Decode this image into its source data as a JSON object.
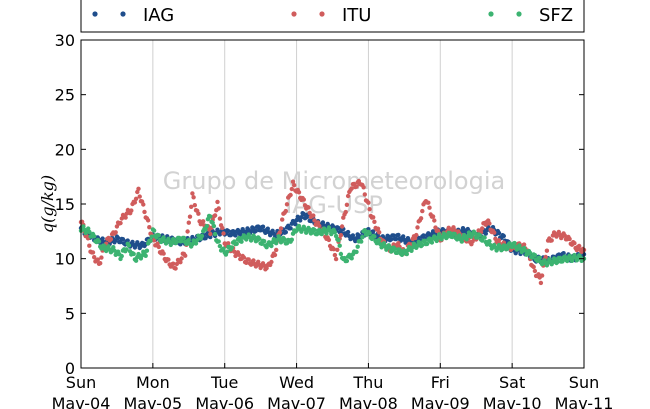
{
  "chart_data": {
    "type": "scatter",
    "ylabel": "q(g/kg)",
    "ylim": [
      0,
      30
    ],
    "yticks": [
      0,
      5,
      10,
      15,
      20,
      25,
      30
    ],
    "xlim": [
      0,
      7
    ],
    "x_units": "days from Sun May-04",
    "xtick_labels": [
      {
        "day": "Sun",
        "date": "Mav-04"
      },
      {
        "day": "Mon",
        "date": "Mav-05"
      },
      {
        "day": "Tue",
        "date": "Mav-06"
      },
      {
        "day": "Wed",
        "date": "Mav-07"
      },
      {
        "day": "Thu",
        "date": "Mav-08"
      },
      {
        "day": "Fri",
        "date": "Mav-09"
      },
      {
        "day": "Sat",
        "date": "Mav-10"
      },
      {
        "day": "Sun",
        "date": "Mav-11"
      }
    ],
    "grid": "vertical",
    "legend_position": "top",
    "watermark": [
      "Grupo de Micrometeorologia",
      "IAG-USP"
    ],
    "series": [
      {
        "name": "IAG",
        "color": "#1f4e8c",
        "x": [
          0,
          0.1,
          0.2,
          0.35,
          0.5,
          0.7,
          0.85,
          1.0,
          1.2,
          1.4,
          1.6,
          1.8,
          1.95,
          2.1,
          2.3,
          2.5,
          2.7,
          2.85,
          3.0,
          3.1,
          3.3,
          3.5,
          3.65,
          3.8,
          4.0,
          4.2,
          4.4,
          4.6,
          4.8,
          5.0,
          5.2,
          5.35,
          5.5,
          5.7,
          5.9,
          6.0,
          6.2,
          6.3,
          6.5,
          6.7,
          6.85,
          7.0
        ],
        "values": [
          12.8,
          12.2,
          11.8,
          11.5,
          11.8,
          11.3,
          11.2,
          12.0,
          11.8,
          11.5,
          11.8,
          12.2,
          12.5,
          12.3,
          12.5,
          12.8,
          12.2,
          12.6,
          13.5,
          14.0,
          13.2,
          12.8,
          12.5,
          11.8,
          12.5,
          11.8,
          12.0,
          11.5,
          12.0,
          12.5,
          12.3,
          12.6,
          12.0,
          12.8,
          11.8,
          10.8,
          10.6,
          10.0,
          9.8,
          10.3,
          10.0,
          10.4
        ]
      },
      {
        "name": "ITU",
        "color": "#d05c5c",
        "x": [
          0,
          0.08,
          0.15,
          0.25,
          0.35,
          0.45,
          0.55,
          0.62,
          0.7,
          0.8,
          0.9,
          1.0,
          1.1,
          1.2,
          1.3,
          1.45,
          1.55,
          1.65,
          1.8,
          1.9,
          2.0,
          2.15,
          2.3,
          2.45,
          2.6,
          2.7,
          2.8,
          2.95,
          3.1,
          3.25,
          3.4,
          3.55,
          3.65,
          3.75,
          3.9,
          4.05,
          4.2,
          4.3,
          4.4,
          4.5,
          4.65,
          4.8,
          5.0,
          5.15,
          5.3,
          5.45,
          5.55,
          5.65,
          5.8,
          5.95,
          6.1,
          6.2,
          6.3,
          6.4,
          6.5,
          6.6,
          6.75,
          6.9,
          7.0
        ],
        "values": [
          13.5,
          12.0,
          10.5,
          9.5,
          11.5,
          12.2,
          13.5,
          14.0,
          14.5,
          16.2,
          14.0,
          11.8,
          10.8,
          9.8,
          9.2,
          10.5,
          15.8,
          13.5,
          12.5,
          15.0,
          11.5,
          10.5,
          9.8,
          9.5,
          9.2,
          10.5,
          13.5,
          16.8,
          15.2,
          13.5,
          12.2,
          10.2,
          13.5,
          16.5,
          17.0,
          13.8,
          11.5,
          10.8,
          11.3,
          10.5,
          12.0,
          15.5,
          11.8,
          12.8,
          12.0,
          11.5,
          12.5,
          13.5,
          11.5,
          11.0,
          11.2,
          11.0,
          9.0,
          8.0,
          11.5,
          12.3,
          12.0,
          11.0,
          10.8
        ]
      },
      {
        "name": "SFZ",
        "color": "#3cb371",
        "x": [
          0,
          0.1,
          0.2,
          0.3,
          0.45,
          0.55,
          0.65,
          0.75,
          0.9,
          1.0,
          1.1,
          1.25,
          1.4,
          1.55,
          1.7,
          1.8,
          1.9,
          2.0,
          2.15,
          2.3,
          2.45,
          2.6,
          2.75,
          2.9,
          3.0,
          3.15,
          3.3,
          3.45,
          3.55,
          3.65,
          3.8,
          3.95,
          4.05,
          4.2,
          4.35,
          4.5,
          4.65,
          4.8,
          5.0,
          5.15,
          5.3,
          5.45,
          5.6,
          5.75,
          5.9,
          6.0,
          6.15,
          6.3,
          6.45,
          6.6,
          6.75,
          6.9,
          7.0
        ],
        "values": [
          12.8,
          12.5,
          11.8,
          11.0,
          10.8,
          10.2,
          11.2,
          10.0,
          10.5,
          12.5,
          11.8,
          11.5,
          11.8,
          11.3,
          12.3,
          14.0,
          11.5,
          10.5,
          11.5,
          12.0,
          11.8,
          11.2,
          11.8,
          11.5,
          12.8,
          12.6,
          12.4,
          12.6,
          12.3,
          9.8,
          10.4,
          12.5,
          12.0,
          11.2,
          10.8,
          10.5,
          11.2,
          11.5,
          12.0,
          12.2,
          11.8,
          12.3,
          11.8,
          11.0,
          11.0,
          11.3,
          10.8,
          10.2,
          9.6,
          9.8,
          10.0,
          10.1,
          10.0
        ]
      }
    ]
  }
}
